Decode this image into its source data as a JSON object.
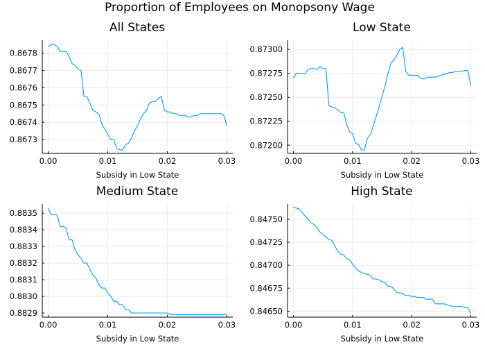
{
  "figure": {
    "title": "Proportion of Employees on Monopsony Wage"
  },
  "chart_data": [
    {
      "type": "line",
      "title": "All States",
      "xlabel": "Subsidy in Low State",
      "ylabel": "",
      "xlim": [
        -0.001,
        0.031
      ],
      "ylim": [
        0.86722,
        0.867875
      ],
      "xticks": [
        0.0,
        0.01,
        0.02,
        0.03
      ],
      "xtick_labels": [
        "0.00",
        "0.01",
        "0.02",
        "0.03"
      ],
      "yticks": [
        0.8673,
        0.8674,
        0.8675,
        0.8676,
        0.8677,
        0.8678
      ],
      "ytick_labels": [
        "0.8673",
        "0.8674",
        "0.8675",
        "0.8676",
        "0.8677",
        "0.8678"
      ],
      "grid": true,
      "color": "#009AFA",
      "x": [
        0.0,
        0.0005,
        0.001,
        0.0015,
        0.002,
        0.0025,
        0.003,
        0.0035,
        0.004,
        0.0045,
        0.005,
        0.0055,
        0.006,
        0.0065,
        0.007,
        0.0075,
        0.008,
        0.0085,
        0.009,
        0.0095,
        0.01,
        0.0105,
        0.011,
        0.0115,
        0.012,
        0.0125,
        0.013,
        0.0135,
        0.014,
        0.0145,
        0.015,
        0.0155,
        0.016,
        0.0165,
        0.017,
        0.0175,
        0.018,
        0.0185,
        0.019,
        0.0195,
        0.02,
        0.0205,
        0.021,
        0.0215,
        0.022,
        0.0225,
        0.023,
        0.0235,
        0.024,
        0.0245,
        0.025,
        0.0255,
        0.026,
        0.0265,
        0.027,
        0.0275,
        0.028,
        0.0285,
        0.029,
        0.0295,
        0.03
      ],
      "y": [
        0.86784,
        0.86785,
        0.86785,
        0.86784,
        0.86781,
        0.86781,
        0.86781,
        0.86778,
        0.86774,
        0.86773,
        0.86771,
        0.8677,
        0.86755,
        0.86755,
        0.86751,
        0.86747,
        0.86746,
        0.86745,
        0.86739,
        0.86736,
        0.86733,
        0.8673,
        0.8673,
        0.86725,
        0.86724,
        0.86724,
        0.86727,
        0.86728,
        0.86731,
        0.86735,
        0.86738,
        0.86742,
        0.86745,
        0.86747,
        0.86751,
        0.86752,
        0.86752,
        0.86754,
        0.86755,
        0.86747,
        0.86746,
        0.86746,
        0.86745,
        0.86745,
        0.86744,
        0.86744,
        0.86744,
        0.86743,
        0.86743,
        0.86744,
        0.86744,
        0.86745,
        0.86745,
        0.86745,
        0.86745,
        0.86745,
        0.86745,
        0.86745,
        0.86745,
        0.86744,
        0.86738
      ]
    },
    {
      "type": "line",
      "title": "Low State",
      "xlabel": "Subsidy in Low State",
      "ylabel": "",
      "xlim": [
        -0.001,
        0.031
      ],
      "ylim": [
        0.871915,
        0.873095
      ],
      "xticks": [
        0.0,
        0.01,
        0.02,
        0.03
      ],
      "xtick_labels": [
        "0.00",
        "0.01",
        "0.02",
        "0.03"
      ],
      "yticks": [
        0.872,
        0.87225,
        0.8725,
        0.87275,
        0.873
      ],
      "ytick_labels": [
        "0.87200",
        "0.87225",
        "0.87250",
        "0.87275",
        "0.87300"
      ],
      "grid": true,
      "color": "#009AFA",
      "x": [
        0.0,
        0.0005,
        0.001,
        0.0015,
        0.002,
        0.0025,
        0.003,
        0.0035,
        0.004,
        0.0045,
        0.005,
        0.0055,
        0.006,
        0.0065,
        0.007,
        0.0075,
        0.008,
        0.0085,
        0.009,
        0.0095,
        0.01,
        0.0105,
        0.011,
        0.0115,
        0.012,
        0.0125,
        0.013,
        0.0135,
        0.014,
        0.0145,
        0.015,
        0.0155,
        0.016,
        0.0165,
        0.017,
        0.0175,
        0.018,
        0.0185,
        0.019,
        0.0195,
        0.02,
        0.0205,
        0.021,
        0.0215,
        0.022,
        0.0225,
        0.023,
        0.0235,
        0.024,
        0.0245,
        0.025,
        0.0255,
        0.026,
        0.0265,
        0.027,
        0.0275,
        0.028,
        0.0285,
        0.029,
        0.0295,
        0.03
      ],
      "y": [
        0.8727,
        0.87275,
        0.87275,
        0.87275,
        0.87275,
        0.87279,
        0.8728,
        0.8728,
        0.87279,
        0.87282,
        0.8728,
        0.8728,
        0.87241,
        0.8724,
        0.87239,
        0.87237,
        0.87234,
        0.87234,
        0.87222,
        0.87214,
        0.87212,
        0.87202,
        0.87201,
        0.87195,
        0.87195,
        0.87207,
        0.87211,
        0.8722,
        0.8723,
        0.8724,
        0.87251,
        0.87262,
        0.87275,
        0.87286,
        0.87289,
        0.87294,
        0.873,
        0.87302,
        0.87277,
        0.87273,
        0.87273,
        0.87273,
        0.87273,
        0.8727,
        0.87269,
        0.8727,
        0.87271,
        0.87271,
        0.87271,
        0.87272,
        0.87273,
        0.87274,
        0.87275,
        0.87276,
        0.87276,
        0.87277,
        0.87277,
        0.87277,
        0.87278,
        0.87278,
        0.87262
      ]
    },
    {
      "type": "line",
      "title": "Medium State",
      "xlabel": "Subsidy in Low State",
      "ylabel": "",
      "xlim": [
        -0.001,
        0.031
      ],
      "ylim": [
        0.882875,
        0.883555
      ],
      "xticks": [
        0.0,
        0.01,
        0.02,
        0.03
      ],
      "xtick_labels": [
        "0.00",
        "0.01",
        "0.02",
        "0.03"
      ],
      "yticks": [
        0.8829,
        0.883,
        0.8831,
        0.8832,
        0.8833,
        0.8834,
        0.8835
      ],
      "ytick_labels": [
        "0.8829",
        "0.8830",
        "0.8831",
        "0.8832",
        "0.8833",
        "0.8834",
        "0.8835"
      ],
      "grid": true,
      "color": "#009AFA",
      "x": [
        0.0,
        0.0005,
        0.001,
        0.0015,
        0.002,
        0.0025,
        0.003,
        0.0035,
        0.004,
        0.0045,
        0.005,
        0.0055,
        0.006,
        0.0065,
        0.007,
        0.0075,
        0.008,
        0.0085,
        0.009,
        0.0095,
        0.01,
        0.0105,
        0.011,
        0.0115,
        0.012,
        0.0125,
        0.013,
        0.0135,
        0.014,
        0.0145,
        0.015,
        0.0155,
        0.016,
        0.0165,
        0.017,
        0.0175,
        0.018,
        0.0185,
        0.019,
        0.0195,
        0.02,
        0.0205,
        0.021,
        0.0215,
        0.022,
        0.0225,
        0.023,
        0.0235,
        0.024,
        0.0245,
        0.025,
        0.0255,
        0.026,
        0.0265,
        0.027,
        0.0275,
        0.028,
        0.0285,
        0.029,
        0.0295,
        0.03
      ],
      "y": [
        0.88353,
        0.88349,
        0.88349,
        0.88349,
        0.88342,
        0.88342,
        0.88341,
        0.88334,
        0.88334,
        0.88328,
        0.88325,
        0.88323,
        0.8832,
        0.8832,
        0.88316,
        0.88313,
        0.88311,
        0.88307,
        0.88305,
        0.88305,
        0.88302,
        0.883,
        0.88297,
        0.88297,
        0.88295,
        0.88295,
        0.88292,
        0.88292,
        0.8829,
        0.8829,
        0.8829,
        0.8829,
        0.8829,
        0.8829,
        0.8829,
        0.8829,
        0.8829,
        0.8829,
        0.8829,
        0.8829,
        0.8829,
        0.88289,
        0.88289,
        0.88289,
        0.88289,
        0.88289,
        0.88289,
        0.88289,
        0.88289,
        0.88289,
        0.88289,
        0.88289,
        0.88289,
        0.88289,
        0.88289,
        0.88289,
        0.88289,
        0.88289,
        0.88289,
        0.88289,
        0.88289
      ]
    },
    {
      "type": "line",
      "title": "High State",
      "xlabel": "Subsidy in Low State",
      "ylabel": "",
      "xlim": [
        -0.001,
        0.031
      ],
      "ylim": [
        0.846435,
        0.847665
      ],
      "xticks": [
        0.0,
        0.01,
        0.02,
        0.03
      ],
      "xtick_labels": [
        "0.00",
        "0.01",
        "0.02",
        "0.03"
      ],
      "yticks": [
        0.8465,
        0.84675,
        0.847,
        0.84725,
        0.8475
      ],
      "ytick_labels": [
        "0.84650",
        "0.84675",
        "0.84700",
        "0.84725",
        "0.84750"
      ],
      "grid": true,
      "color": "#009AFA",
      "x": [
        0.0,
        0.0005,
        0.001,
        0.0015,
        0.002,
        0.0025,
        0.003,
        0.0035,
        0.004,
        0.0045,
        0.005,
        0.0055,
        0.006,
        0.0065,
        0.007,
        0.0075,
        0.008,
        0.0085,
        0.009,
        0.0095,
        0.01,
        0.0105,
        0.011,
        0.0115,
        0.012,
        0.0125,
        0.013,
        0.0135,
        0.014,
        0.0145,
        0.015,
        0.0155,
        0.016,
        0.0165,
        0.017,
        0.0175,
        0.018,
        0.0185,
        0.019,
        0.0195,
        0.02,
        0.0205,
        0.021,
        0.0215,
        0.022,
        0.0225,
        0.023,
        0.0235,
        0.024,
        0.0245,
        0.025,
        0.0255,
        0.026,
        0.0265,
        0.027,
        0.0275,
        0.028,
        0.0285,
        0.029,
        0.0295,
        0.03
      ],
      "y": [
        0.84763,
        0.84762,
        0.84761,
        0.84757,
        0.84753,
        0.8475,
        0.84746,
        0.84744,
        0.84741,
        0.84736,
        0.84733,
        0.84731,
        0.84728,
        0.84727,
        0.84721,
        0.84715,
        0.84712,
        0.84711,
        0.84707,
        0.84706,
        0.84701,
        0.84697,
        0.84694,
        0.84692,
        0.84691,
        0.8469,
        0.84689,
        0.84685,
        0.84685,
        0.84684,
        0.84682,
        0.84681,
        0.84677,
        0.84677,
        0.84674,
        0.8467,
        0.8467,
        0.84669,
        0.84667,
        0.84667,
        0.84666,
        0.84666,
        0.84665,
        0.84665,
        0.84665,
        0.84663,
        0.84663,
        0.84663,
        0.84658,
        0.84658,
        0.84658,
        0.84658,
        0.84657,
        0.84656,
        0.84655,
        0.84655,
        0.84655,
        0.84655,
        0.84654,
        0.84654,
        0.84647
      ]
    }
  ]
}
